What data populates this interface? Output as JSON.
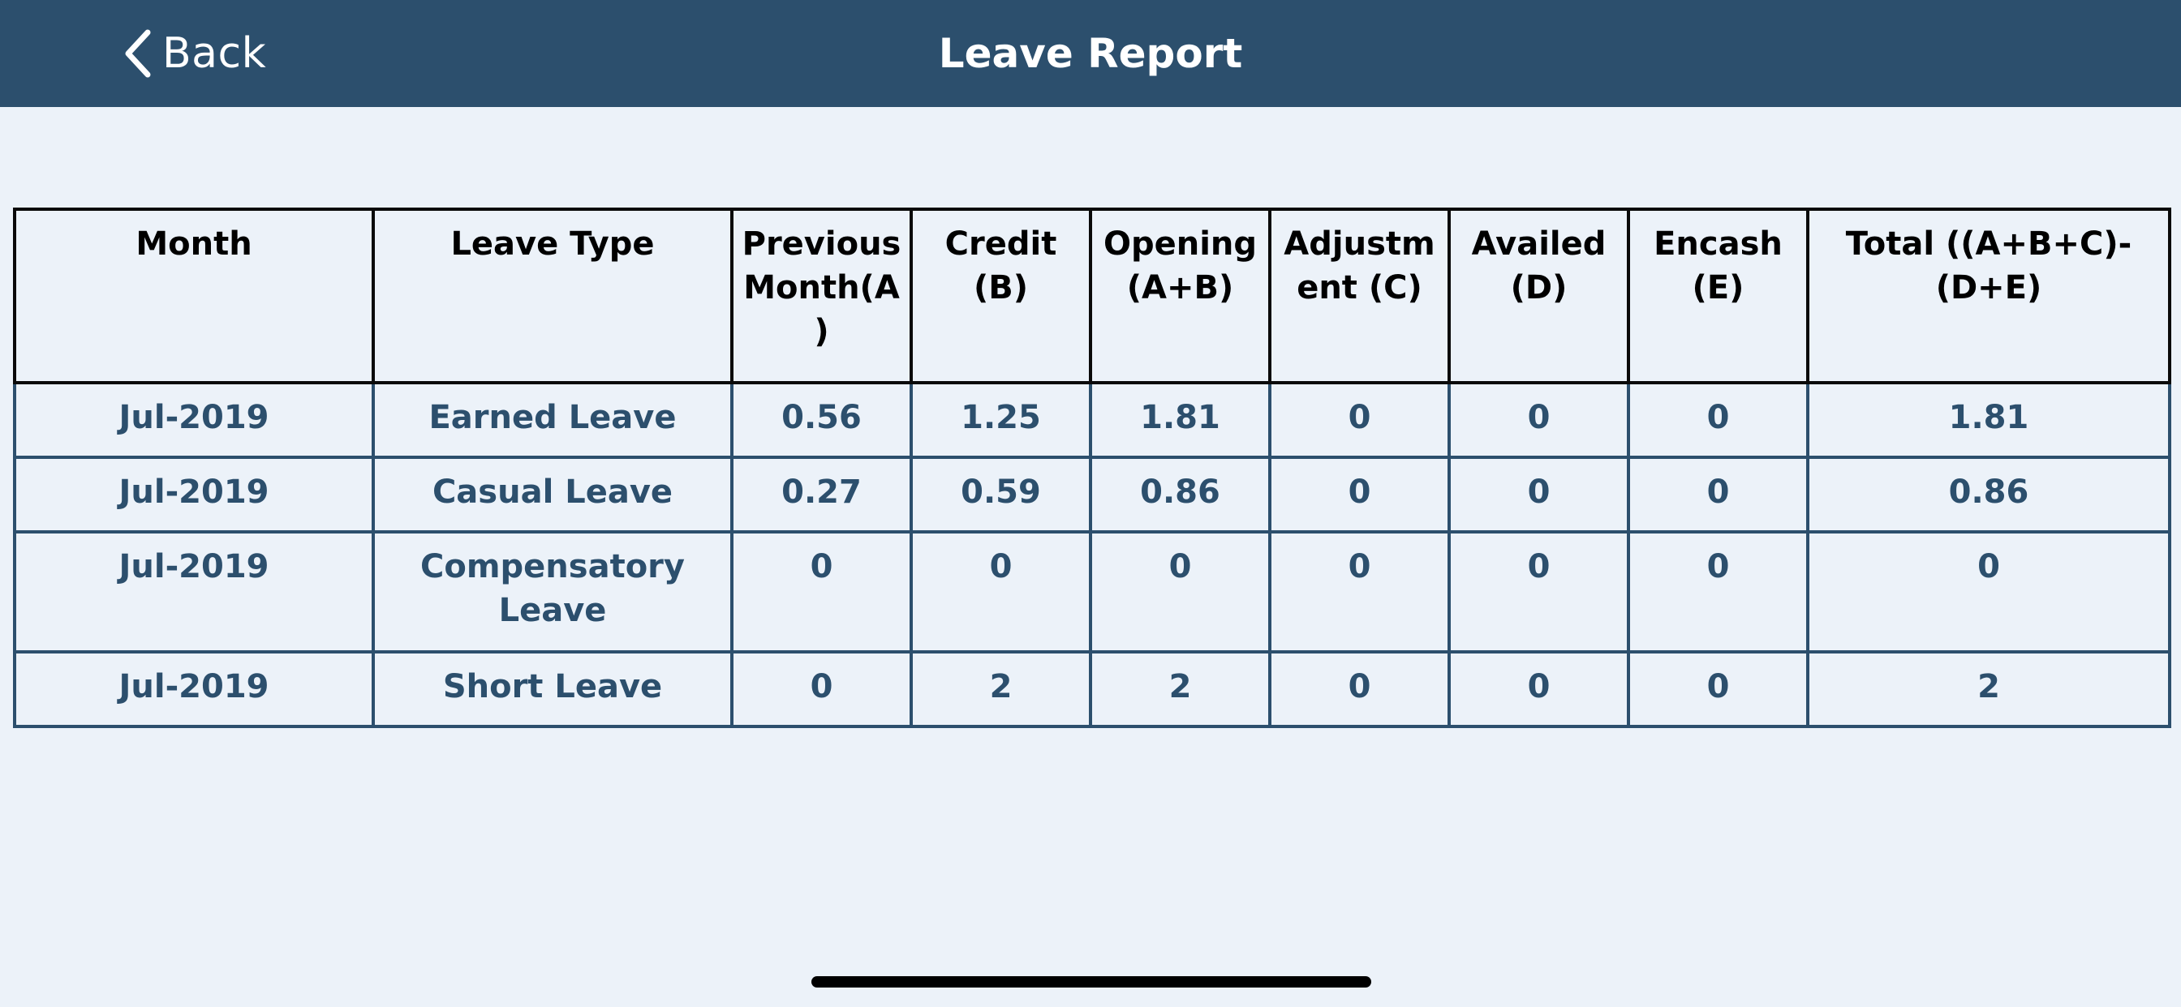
{
  "navbar": {
    "back_label": "Back",
    "title": "Leave Report",
    "back_icon": "chevron-left-icon"
  },
  "table": {
    "headers": [
      "Month",
      "Leave Type",
      "Previous Month(A)",
      "Credit (B)",
      "Opening (A+B)",
      "Adjustment (C)",
      "Availed (D)",
      "Encash (E)",
      "Total ((A+B+C)-(D+E)"
    ],
    "rows": [
      [
        "Jul-2019",
        "Earned Leave",
        "0.56",
        "1.25",
        "1.81",
        "0",
        "0",
        "0",
        "1.81"
      ],
      [
        "Jul-2019",
        "Casual Leave",
        "0.27",
        "0.59",
        "0.86",
        "0",
        "0",
        "0",
        "0.86"
      ],
      [
        "Jul-2019",
        "Compensatory Leave",
        "0",
        "0",
        "0",
        "0",
        "0",
        "0",
        "0"
      ],
      [
        "Jul-2019",
        "Short Leave",
        "0",
        "2",
        "2",
        "0",
        "0",
        "0",
        "2"
      ]
    ]
  },
  "colors": {
    "navbar_bg": "#2c4f6d",
    "page_bg": "#ecf2f9",
    "cell_text": "#2c4f6d",
    "header_text": "#000000"
  }
}
